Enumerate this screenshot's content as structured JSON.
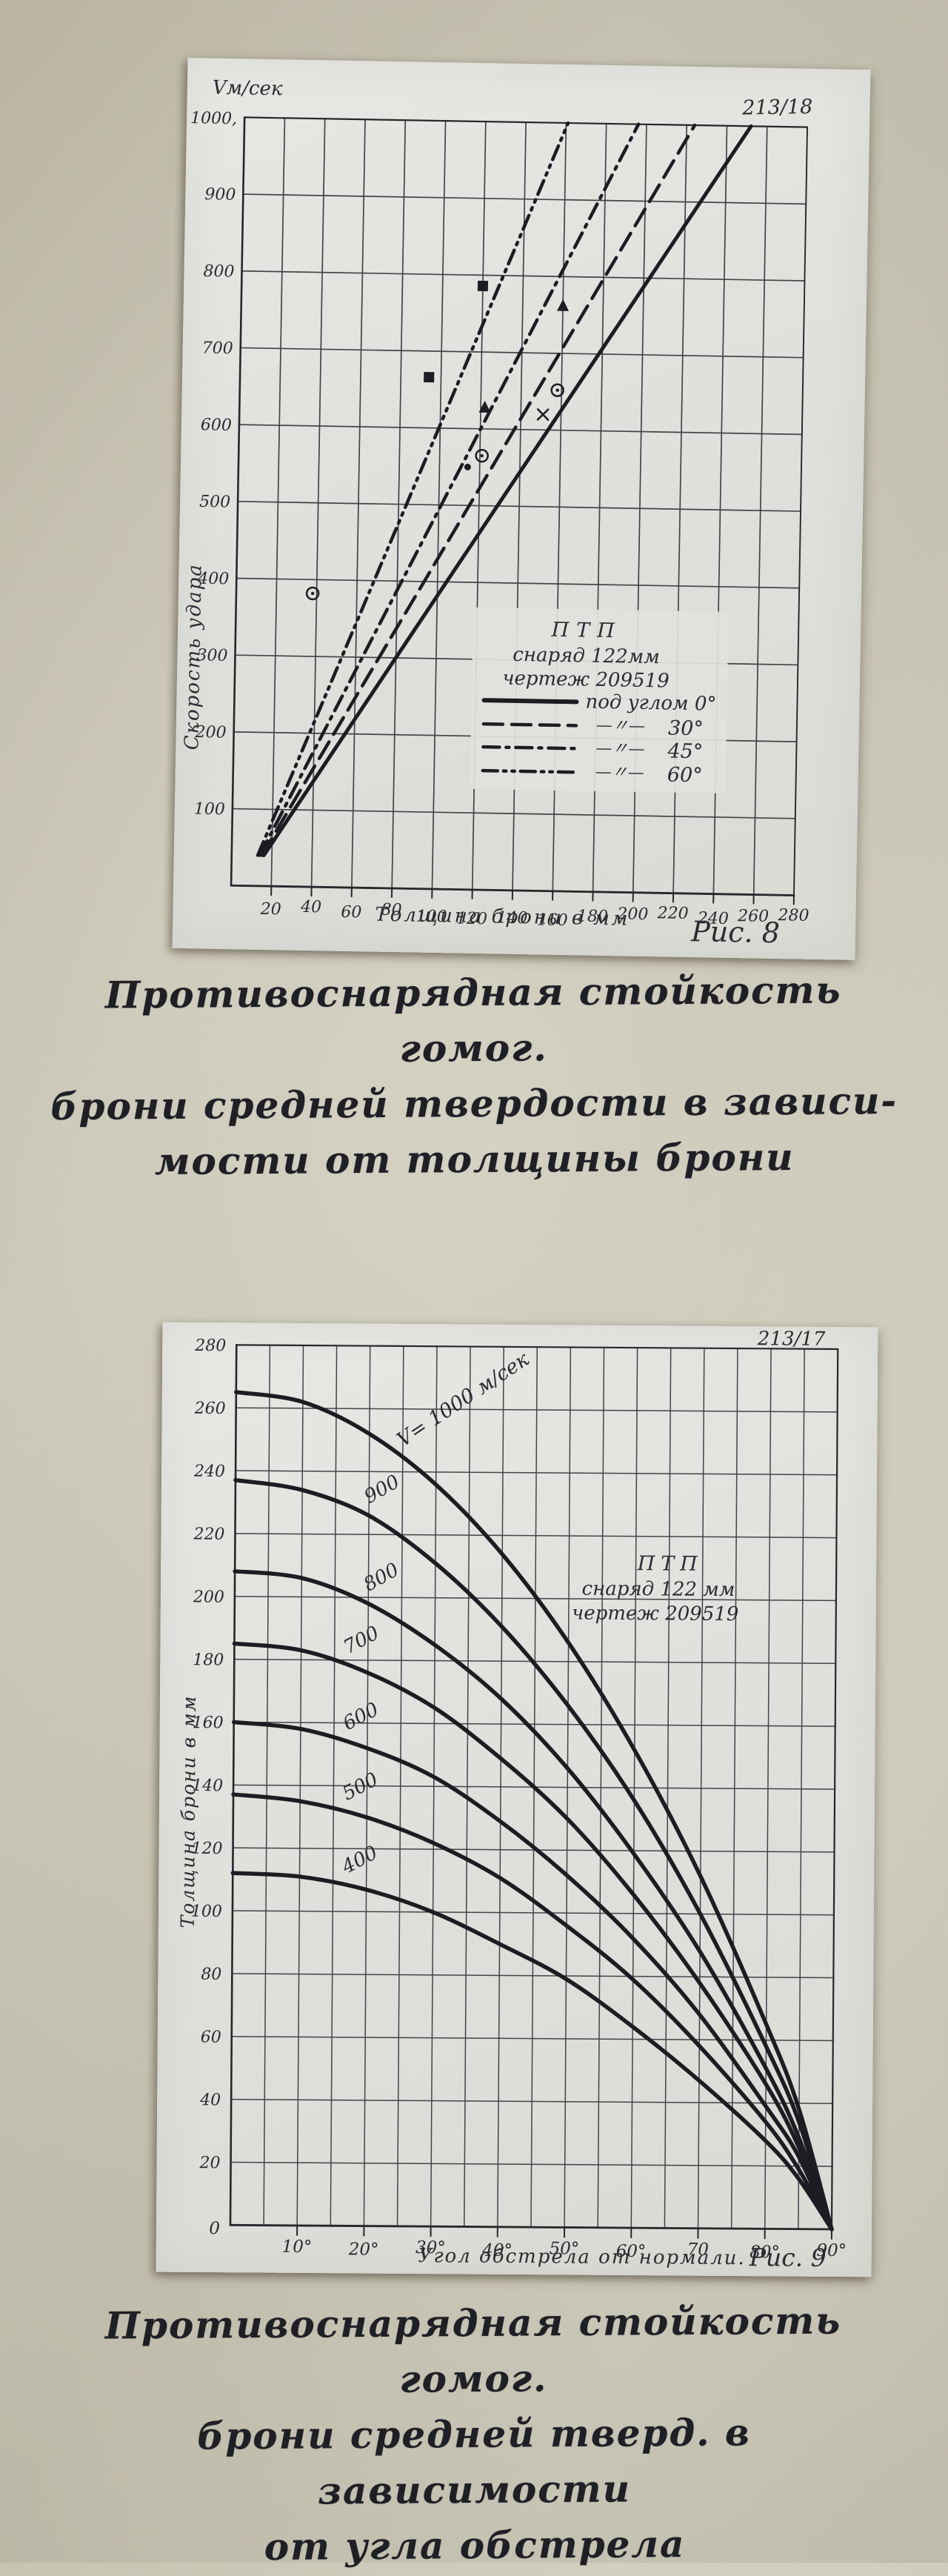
{
  "captions": {
    "fig8_lines": [
      "Противоснарядная стойкость гомог.",
      "брони средней твердости в зависи-",
      "мости от толщины брони"
    ],
    "fig9_lines": [
      "Противоснарядная стойкость гомог.",
      "брони средней тверд. в зависимости",
      "от угла обстрела"
    ]
  },
  "chart_data": [
    {
      "id": "fig8",
      "type": "line",
      "fig_label": "Рис. 8",
      "corner_code": "213/18",
      "y_unit_label": "Vм/сек",
      "ylabel": "Скорость удара",
      "xlabel": "Толщина брони в мм",
      "xlim": [
        0,
        280
      ],
      "ylim": [
        0,
        1000
      ],
      "x_ticks": [
        20,
        40,
        60,
        80,
        100,
        120,
        140,
        160,
        180,
        200,
        220,
        240,
        260,
        280
      ],
      "y_ticks": [
        100,
        200,
        300,
        400,
        500,
        600,
        700,
        800,
        900
      ],
      "y_top_tick_label": "1000,",
      "grid": "on",
      "legend": {
        "title_lines": [
          "ПТП",
          "снаряд 122мм",
          "чертеж 209519"
        ],
        "first_row_label": "под углом 0°",
        "ditto_mark": "—〃—",
        "entries": [
          {
            "style": "solid",
            "angle": "0°"
          },
          {
            "style": "dashed",
            "angle": "30°"
          },
          {
            "style": "dashdot",
            "angle": "45°"
          },
          {
            "style": "dashdotdot",
            "angle": "60°"
          }
        ]
      },
      "series": [
        {
          "name": "под углом 0°",
          "style": "solid",
          "points": [
            [
              16,
              40
            ],
            [
              252,
              1000
            ]
          ]
        },
        {
          "name": "под углом 30°",
          "style": "dashed",
          "points": [
            [
              15,
              40
            ],
            [
              224,
              1000
            ]
          ]
        },
        {
          "name": "под углом 45°",
          "style": "dashdot",
          "points": [
            [
              14,
              40
            ],
            [
              196,
              1000
            ]
          ]
        },
        {
          "name": "под углом 60°",
          "style": "dashdotdot",
          "points": [
            [
              13,
              40
            ],
            [
              161,
              1000
            ]
          ]
        }
      ],
      "markers": [
        {
          "shape": "square",
          "points": [
            [
              120,
              786
            ],
            [
              94,
              666
            ]
          ]
        },
        {
          "shape": "triangle",
          "points": [
            [
              160,
              762
            ],
            [
              122,
              628
            ]
          ]
        },
        {
          "shape": "circle-dot",
          "points": [
            [
              158,
              652
            ],
            [
              121,
              565
            ],
            [
              38,
              382
            ]
          ]
        },
        {
          "shape": "x",
          "points": [
            [
              151,
              620
            ]
          ]
        },
        {
          "shape": "dot",
          "points": [
            [
              114,
              550
            ]
          ]
        }
      ]
    },
    {
      "id": "fig9",
      "type": "line",
      "fig_label": "Рис. 9",
      "corner_code": "213/17",
      "ylabel": "Толщина брони в мм",
      "xlabel": "Угол обстрела от нормали.",
      "xlim": [
        0,
        90
      ],
      "ylim": [
        0,
        280
      ],
      "origin_label": "0",
      "x_tick_values": [
        10,
        20,
        30,
        40,
        50,
        60,
        70,
        80,
        90
      ],
      "x_tick_labels": [
        "10°",
        "20°",
        "30°",
        "40°",
        "50°",
        "60°",
        "70",
        "80°",
        "90°"
      ],
      "y_ticks": [
        20,
        40,
        60,
        80,
        100,
        120,
        140,
        160,
        180,
        200,
        220,
        240,
        260,
        280
      ],
      "grid": "on",
      "note_lines": [
        "ПТП",
        "снаряд 122 мм",
        "чертеж 209519"
      ],
      "x": [
        0,
        10,
        20,
        30,
        40,
        50,
        60,
        70,
        80,
        85,
        90
      ],
      "series": [
        {
          "name": "V= 1000 м/сек",
          "label": "V= 1000 м/сек",
          "label_angle": 25,
          "label_rot": -34,
          "values": [
            265,
            262,
            252,
            236,
            214,
            186,
            152,
            112,
            65,
            38,
            0
          ]
        },
        {
          "name": "900",
          "label": "900",
          "label_angle": 20,
          "label_rot": -30,
          "values": [
            237,
            234,
            226,
            211,
            191,
            166,
            136,
            100,
            58,
            34,
            0
          ]
        },
        {
          "name": "800",
          "label": "800",
          "label_angle": 20,
          "label_rot": -30,
          "values": [
            208,
            206,
            198,
            185,
            168,
            146,
            119,
            88,
            51,
            29,
            0
          ]
        },
        {
          "name": "700",
          "label": "700",
          "label_angle": 17,
          "label_rot": -28,
          "values": [
            185,
            183,
            176,
            165,
            149,
            130,
            106,
            78,
            46,
            26,
            0
          ]
        },
        {
          "name": "600",
          "label": "600",
          "label_angle": 17,
          "label_rot": -28,
          "values": [
            160,
            158,
            152,
            143,
            129,
            112,
            92,
            68,
            39,
            23,
            0
          ]
        },
        {
          "name": "500",
          "label": "500",
          "label_angle": 17,
          "label_rot": -28,
          "values": [
            137,
            135,
            130,
            122,
            111,
            96,
            79,
            58,
            34,
            19,
            0
          ]
        },
        {
          "name": "400",
          "label": "400",
          "label_angle": 17,
          "label_rot": -28,
          "values": [
            112,
            111,
            107,
            100,
            90,
            79,
            64,
            47,
            28,
            16,
            0
          ]
        }
      ]
    }
  ]
}
